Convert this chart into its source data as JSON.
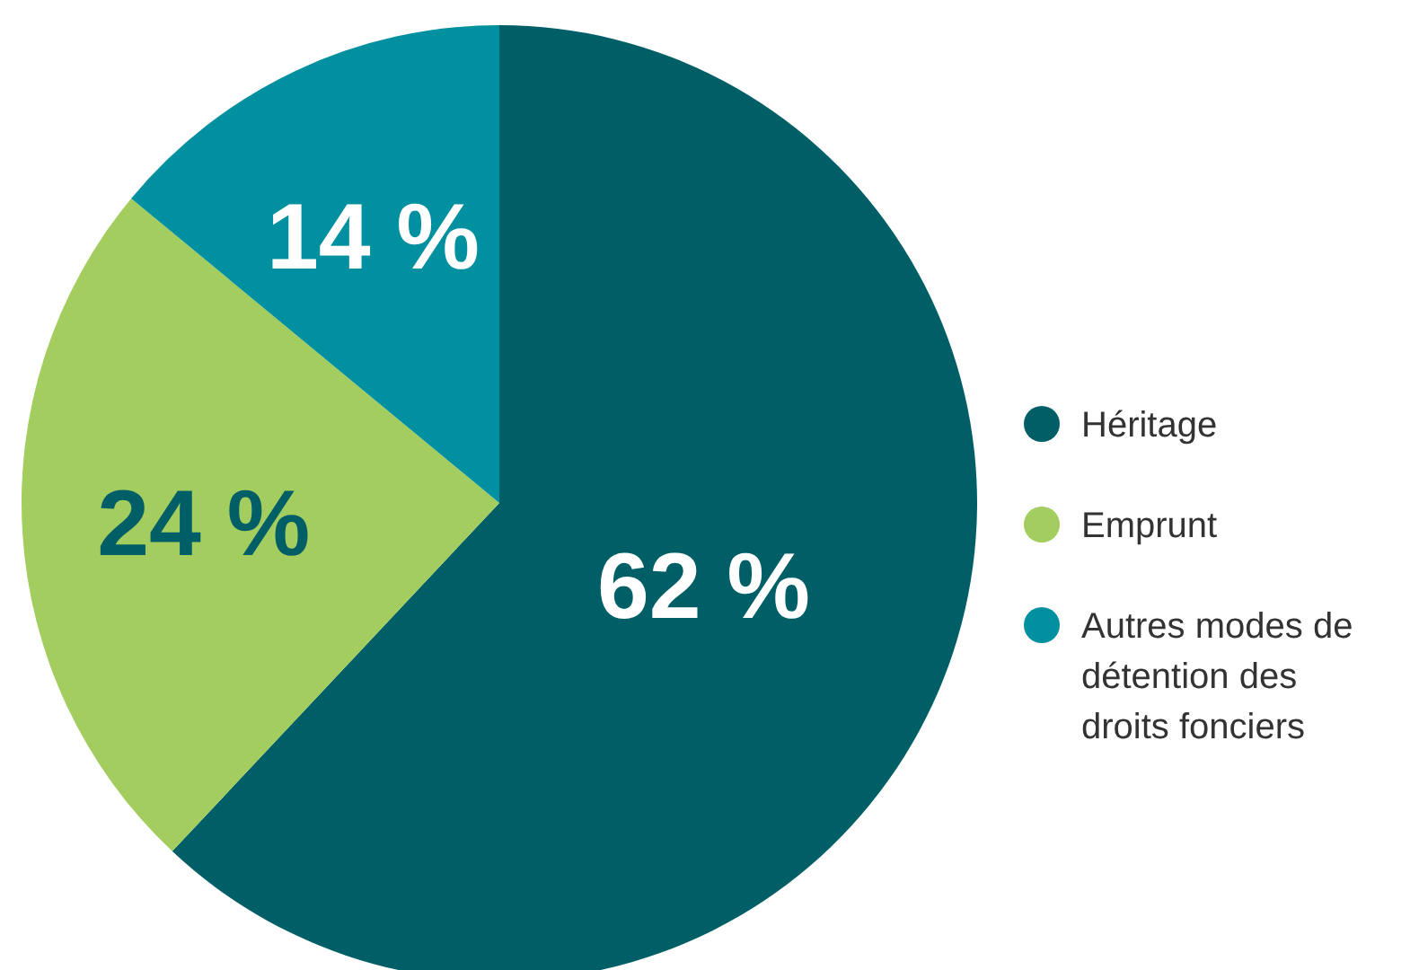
{
  "chart_data": {
    "type": "pie",
    "categories": [
      "Héritage",
      "Emprunt",
      "Autres modes de détention des droits fonciers"
    ],
    "values": [
      62,
      24,
      14
    ],
    "colors": [
      "#005f66",
      "#a3cd5f",
      "#0090a0"
    ],
    "value_labels": [
      "62 %",
      "24 %",
      "14 %"
    ],
    "legend": "right"
  }
}
